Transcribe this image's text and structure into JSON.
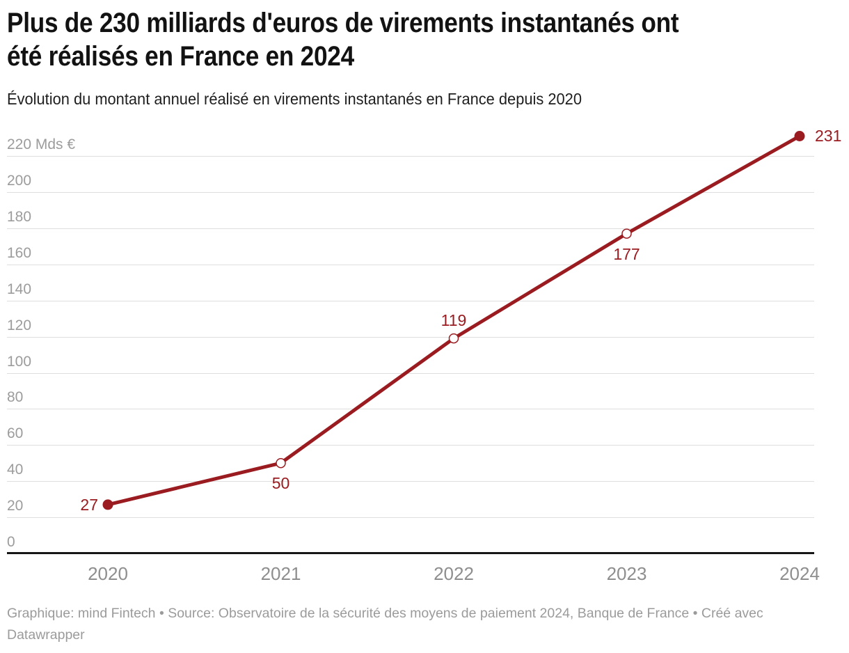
{
  "header": {
    "title_lines": [
      "Plus de 230 milliards d'euros de virements instantanés ont",
      "été réalisés en France en 2024"
    ],
    "subtitle": "Évolution du montant annuel réalisé en virements instantanés en France depuis 2020"
  },
  "chart_data": {
    "type": "line",
    "x": [
      "2020",
      "2021",
      "2022",
      "2023",
      "2024"
    ],
    "values": [
      27,
      50,
      119,
      177,
      231
    ],
    "unit": "Mds €",
    "yticks": [
      0,
      20,
      40,
      60,
      80,
      100,
      120,
      140,
      160,
      180,
      200,
      220
    ],
    "ytick_top_label": "220 Mds €",
    "ylim": [
      0,
      235
    ],
    "grid": "horizontal",
    "legend": "none",
    "title": "Plus de 230 milliards d'euros de virements instantanés ont été réalisés en France en 2024",
    "xlabel": "",
    "ylabel": "Mds €",
    "points": [
      {
        "x": "2020",
        "value": 27,
        "marker": "filled",
        "label_pos": "left"
      },
      {
        "x": "2021",
        "value": 50,
        "marker": "open",
        "label_pos": "below"
      },
      {
        "x": "2022",
        "value": 119,
        "marker": "open",
        "label_pos": "above"
      },
      {
        "x": "2023",
        "value": 177,
        "marker": "open",
        "label_pos": "below"
      },
      {
        "x": "2024",
        "value": 231,
        "marker": "filled",
        "label_pos": "right"
      }
    ]
  },
  "footer": {
    "lines": [
      "Graphique: mind Fintech • Source: Observatoire de la sécurité des moyens de paiement 2024, Banque de France • Créé avec",
      "Datawrapper"
    ]
  },
  "colors": {
    "accent": "#9a1b20",
    "grid": "#dedede",
    "axis_line": "#161616",
    "y_tick_text": "#9c9c9c",
    "x_tick_text": "#8e8e8e",
    "title_text": "#121212",
    "footer_text": "#9b9b9b",
    "background": "#ffffff"
  }
}
